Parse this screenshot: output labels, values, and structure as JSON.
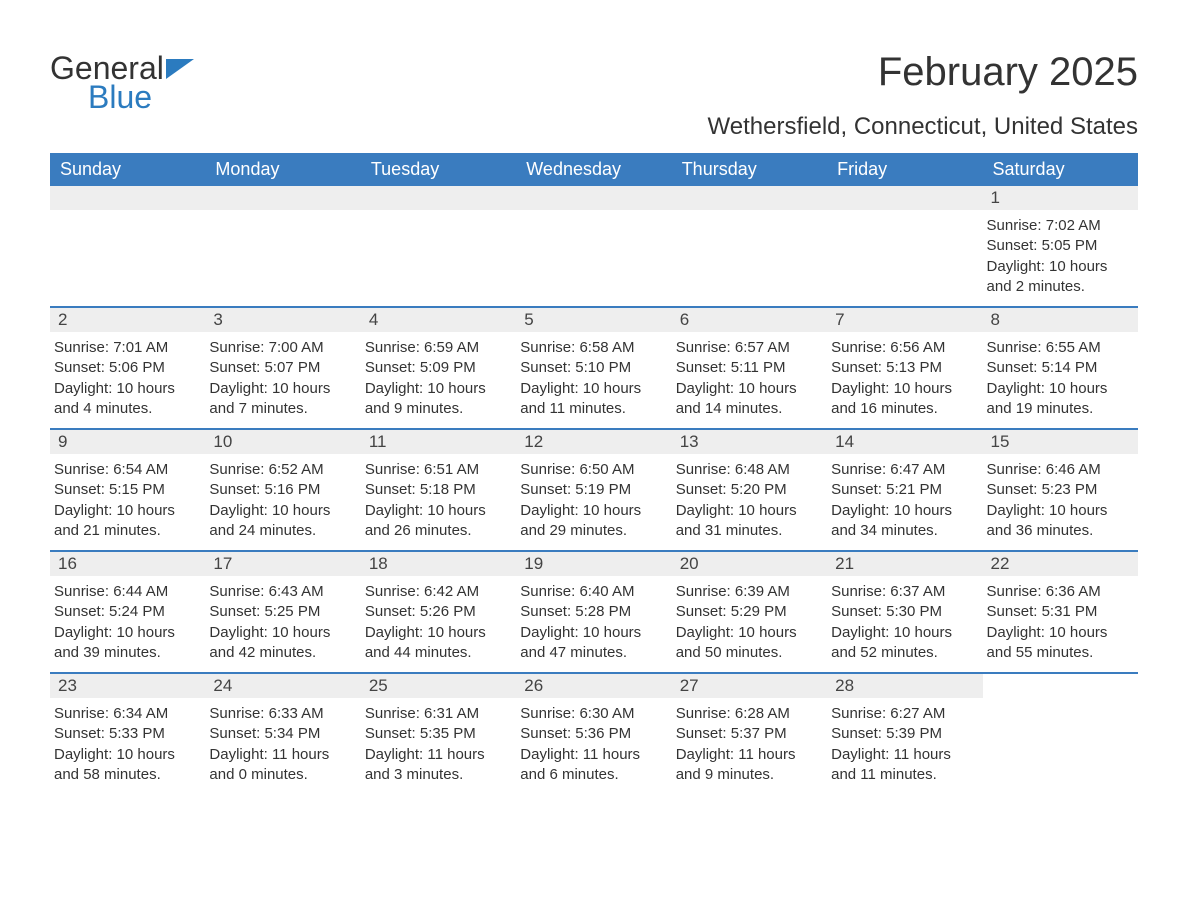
{
  "logo": {
    "text1": "General",
    "text2": "Blue",
    "color_general": "#333333",
    "color_blue": "#2b7bbf",
    "flag_color": "#2b7bbf"
  },
  "header": {
    "month_title": "February 2025",
    "location": "Wethersfield, Connecticut, United States"
  },
  "colors": {
    "header_bg": "#3a7cbf",
    "header_text": "#ffffff",
    "row_border": "#3a7cbf",
    "day_number_bg": "#eeeeee",
    "text": "#333333",
    "background": "#ffffff"
  },
  "day_names": [
    "Sunday",
    "Monday",
    "Tuesday",
    "Wednesday",
    "Thursday",
    "Friday",
    "Saturday"
  ],
  "weeks": [
    [
      {
        "day": "",
        "sunrise": "",
        "sunset": "",
        "daylight": ""
      },
      {
        "day": "",
        "sunrise": "",
        "sunset": "",
        "daylight": ""
      },
      {
        "day": "",
        "sunrise": "",
        "sunset": "",
        "daylight": ""
      },
      {
        "day": "",
        "sunrise": "",
        "sunset": "",
        "daylight": ""
      },
      {
        "day": "",
        "sunrise": "",
        "sunset": "",
        "daylight": ""
      },
      {
        "day": "",
        "sunrise": "",
        "sunset": "",
        "daylight": ""
      },
      {
        "day": "1",
        "sunrise": "Sunrise: 7:02 AM",
        "sunset": "Sunset: 5:05 PM",
        "daylight": "Daylight: 10 hours and 2 minutes."
      }
    ],
    [
      {
        "day": "2",
        "sunrise": "Sunrise: 7:01 AM",
        "sunset": "Sunset: 5:06 PM",
        "daylight": "Daylight: 10 hours and 4 minutes."
      },
      {
        "day": "3",
        "sunrise": "Sunrise: 7:00 AM",
        "sunset": "Sunset: 5:07 PM",
        "daylight": "Daylight: 10 hours and 7 minutes."
      },
      {
        "day": "4",
        "sunrise": "Sunrise: 6:59 AM",
        "sunset": "Sunset: 5:09 PM",
        "daylight": "Daylight: 10 hours and 9 minutes."
      },
      {
        "day": "5",
        "sunrise": "Sunrise: 6:58 AM",
        "sunset": "Sunset: 5:10 PM",
        "daylight": "Daylight: 10 hours and 11 minutes."
      },
      {
        "day": "6",
        "sunrise": "Sunrise: 6:57 AM",
        "sunset": "Sunset: 5:11 PM",
        "daylight": "Daylight: 10 hours and 14 minutes."
      },
      {
        "day": "7",
        "sunrise": "Sunrise: 6:56 AM",
        "sunset": "Sunset: 5:13 PM",
        "daylight": "Daylight: 10 hours and 16 minutes."
      },
      {
        "day": "8",
        "sunrise": "Sunrise: 6:55 AM",
        "sunset": "Sunset: 5:14 PM",
        "daylight": "Daylight: 10 hours and 19 minutes."
      }
    ],
    [
      {
        "day": "9",
        "sunrise": "Sunrise: 6:54 AM",
        "sunset": "Sunset: 5:15 PM",
        "daylight": "Daylight: 10 hours and 21 minutes."
      },
      {
        "day": "10",
        "sunrise": "Sunrise: 6:52 AM",
        "sunset": "Sunset: 5:16 PM",
        "daylight": "Daylight: 10 hours and 24 minutes."
      },
      {
        "day": "11",
        "sunrise": "Sunrise: 6:51 AM",
        "sunset": "Sunset: 5:18 PM",
        "daylight": "Daylight: 10 hours and 26 minutes."
      },
      {
        "day": "12",
        "sunrise": "Sunrise: 6:50 AM",
        "sunset": "Sunset: 5:19 PM",
        "daylight": "Daylight: 10 hours and 29 minutes."
      },
      {
        "day": "13",
        "sunrise": "Sunrise: 6:48 AM",
        "sunset": "Sunset: 5:20 PM",
        "daylight": "Daylight: 10 hours and 31 minutes."
      },
      {
        "day": "14",
        "sunrise": "Sunrise: 6:47 AM",
        "sunset": "Sunset: 5:21 PM",
        "daylight": "Daylight: 10 hours and 34 minutes."
      },
      {
        "day": "15",
        "sunrise": "Sunrise: 6:46 AM",
        "sunset": "Sunset: 5:23 PM",
        "daylight": "Daylight: 10 hours and 36 minutes."
      }
    ],
    [
      {
        "day": "16",
        "sunrise": "Sunrise: 6:44 AM",
        "sunset": "Sunset: 5:24 PM",
        "daylight": "Daylight: 10 hours and 39 minutes."
      },
      {
        "day": "17",
        "sunrise": "Sunrise: 6:43 AM",
        "sunset": "Sunset: 5:25 PM",
        "daylight": "Daylight: 10 hours and 42 minutes."
      },
      {
        "day": "18",
        "sunrise": "Sunrise: 6:42 AM",
        "sunset": "Sunset: 5:26 PM",
        "daylight": "Daylight: 10 hours and 44 minutes."
      },
      {
        "day": "19",
        "sunrise": "Sunrise: 6:40 AM",
        "sunset": "Sunset: 5:28 PM",
        "daylight": "Daylight: 10 hours and 47 minutes."
      },
      {
        "day": "20",
        "sunrise": "Sunrise: 6:39 AM",
        "sunset": "Sunset: 5:29 PM",
        "daylight": "Daylight: 10 hours and 50 minutes."
      },
      {
        "day": "21",
        "sunrise": "Sunrise: 6:37 AM",
        "sunset": "Sunset: 5:30 PM",
        "daylight": "Daylight: 10 hours and 52 minutes."
      },
      {
        "day": "22",
        "sunrise": "Sunrise: 6:36 AM",
        "sunset": "Sunset: 5:31 PM",
        "daylight": "Daylight: 10 hours and 55 minutes."
      }
    ],
    [
      {
        "day": "23",
        "sunrise": "Sunrise: 6:34 AM",
        "sunset": "Sunset: 5:33 PM",
        "daylight": "Daylight: 10 hours and 58 minutes."
      },
      {
        "day": "24",
        "sunrise": "Sunrise: 6:33 AM",
        "sunset": "Sunset: 5:34 PM",
        "daylight": "Daylight: 11 hours and 0 minutes."
      },
      {
        "day": "25",
        "sunrise": "Sunrise: 6:31 AM",
        "sunset": "Sunset: 5:35 PM",
        "daylight": "Daylight: 11 hours and 3 minutes."
      },
      {
        "day": "26",
        "sunrise": "Sunrise: 6:30 AM",
        "sunset": "Sunset: 5:36 PM",
        "daylight": "Daylight: 11 hours and 6 minutes."
      },
      {
        "day": "27",
        "sunrise": "Sunrise: 6:28 AM",
        "sunset": "Sunset: 5:37 PM",
        "daylight": "Daylight: 11 hours and 9 minutes."
      },
      {
        "day": "28",
        "sunrise": "Sunrise: 6:27 AM",
        "sunset": "Sunset: 5:39 PM",
        "daylight": "Daylight: 11 hours and 11 minutes."
      },
      {
        "day": "",
        "sunrise": "",
        "sunset": "",
        "daylight": ""
      }
    ]
  ]
}
